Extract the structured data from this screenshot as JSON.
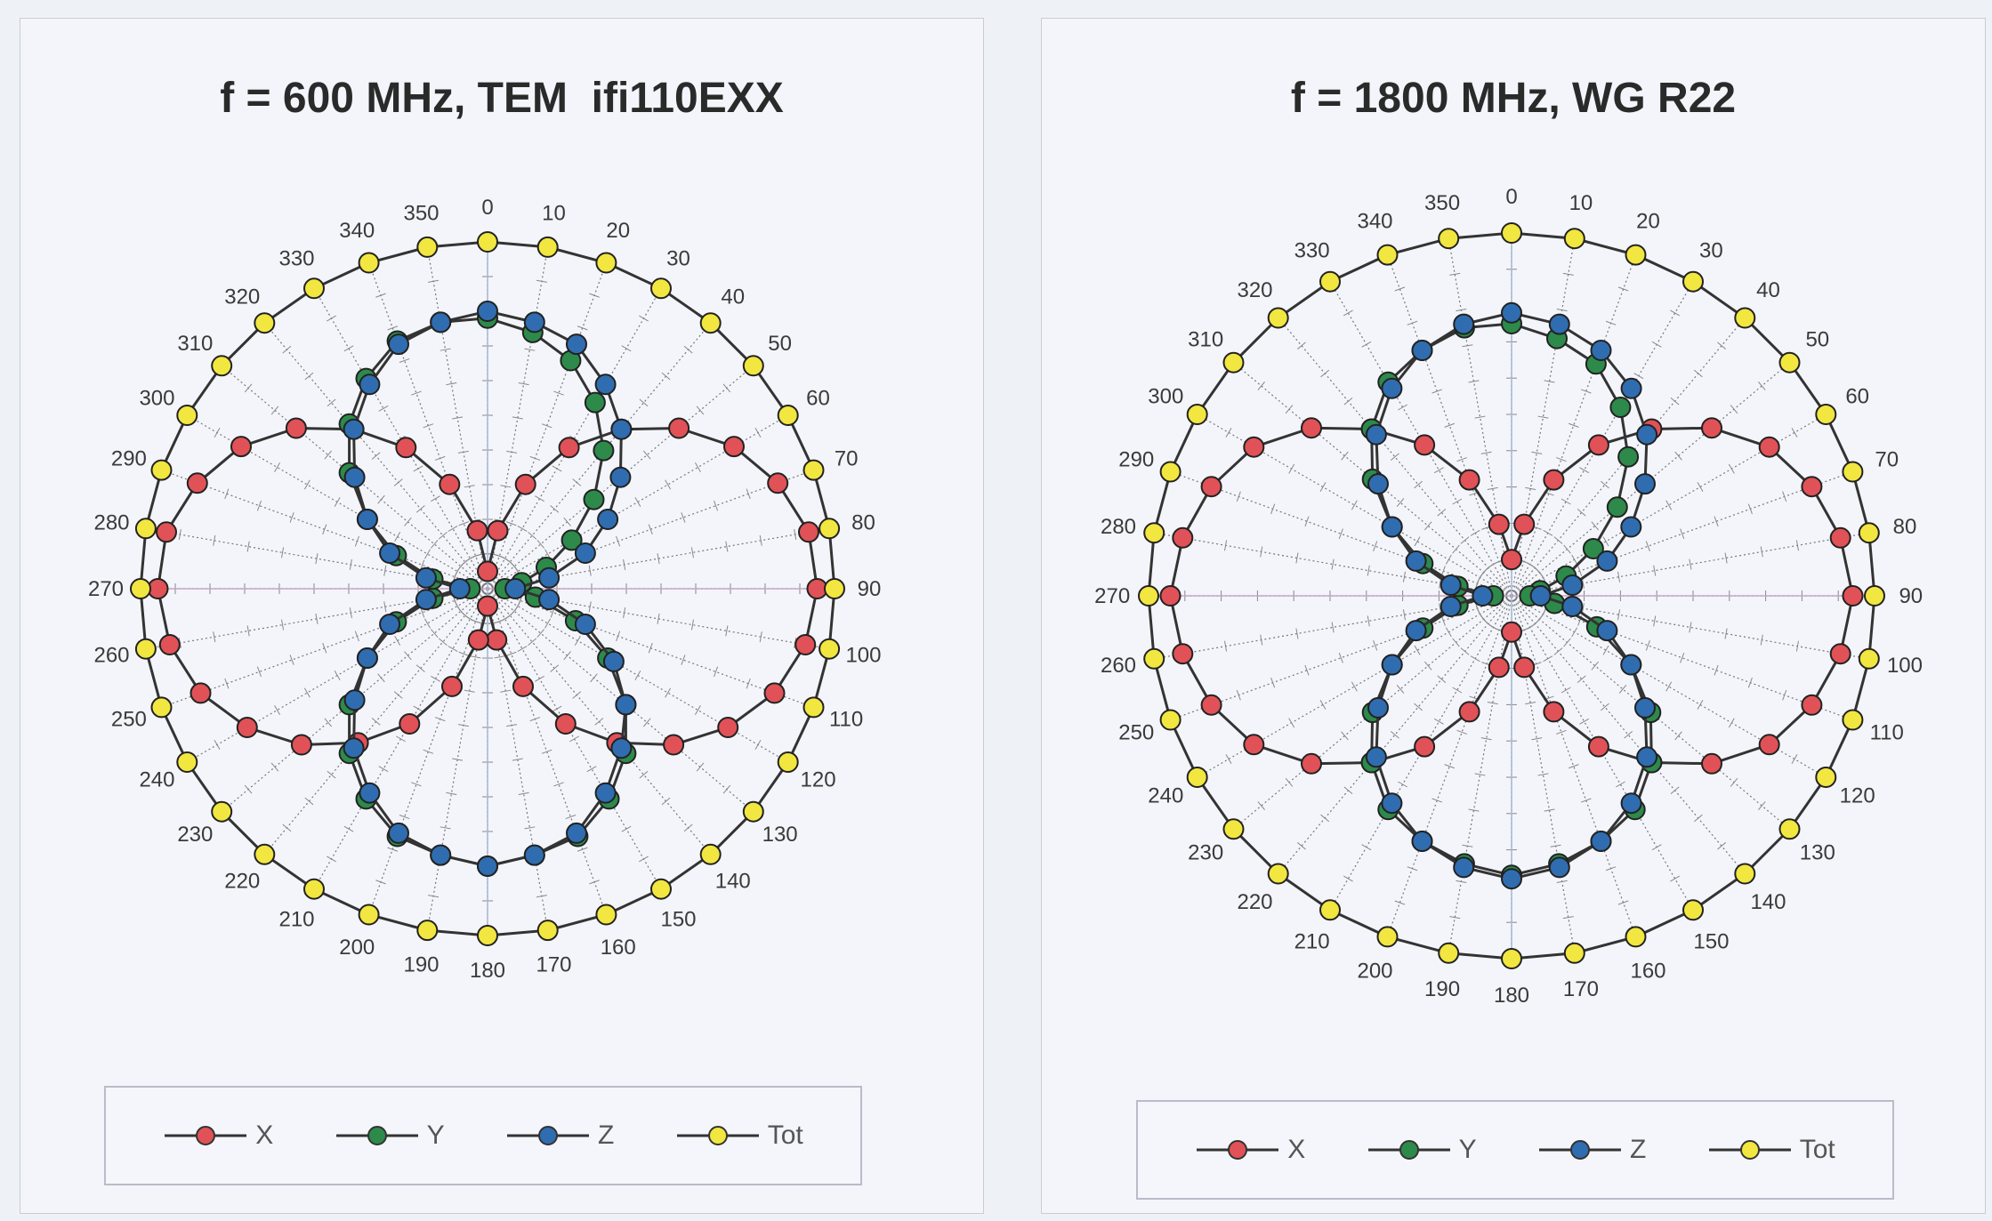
{
  "colors": {
    "X": "#e05257",
    "Y": "#2d8a4a",
    "Z": "#2f6db0",
    "Tot": "#f2e640",
    "line": "#333333",
    "grid": "#777777"
  },
  "chart_data": [
    {
      "type": "polar",
      "title": "f = 600 MHz, TEM  ifi110EXX",
      "angles": [
        0,
        10,
        20,
        30,
        40,
        50,
        60,
        70,
        80,
        90,
        100,
        110,
        120,
        130,
        140,
        150,
        160,
        170,
        180,
        190,
        200,
        210,
        220,
        230,
        240,
        250,
        260,
        270,
        280,
        290,
        300,
        310,
        320,
        330,
        340,
        350
      ],
      "angle_labels": [
        "0",
        "10",
        "20",
        "30",
        "40",
        "50",
        "60",
        "70",
        "80",
        "90",
        "100",
        "110",
        "120",
        "130",
        "140",
        "150",
        "160",
        "170",
        "180",
        "190",
        "200",
        "210",
        "220",
        "230",
        "240",
        "250",
        "260",
        "270",
        "280",
        "290",
        "300",
        "310",
        "320",
        "330",
        "340",
        "350"
      ],
      "rlim": [
        0,
        1
      ],
      "grid": true,
      "legend_position": "bottom",
      "series": [
        {
          "name": "X",
          "values": [
            0.05,
            0.17,
            0.32,
            0.47,
            0.6,
            0.72,
            0.82,
            0.89,
            0.94,
            0.95,
            0.93,
            0.88,
            0.8,
            0.7,
            0.58,
            0.45,
            0.3,
            0.15,
            0.05,
            0.15,
            0.3,
            0.45,
            0.58,
            0.7,
            0.8,
            0.88,
            0.93,
            0.95,
            0.94,
            0.89,
            0.82,
            0.72,
            0.6,
            0.47,
            0.32,
            0.17
          ]
        },
        {
          "name": "Y",
          "values": [
            0.78,
            0.75,
            0.7,
            0.62,
            0.52,
            0.4,
            0.28,
            0.18,
            0.1,
            0.05,
            0.14,
            0.27,
            0.4,
            0.52,
            0.62,
            0.7,
            0.76,
            0.78,
            0.8,
            0.78,
            0.76,
            0.7,
            0.62,
            0.52,
            0.4,
            0.28,
            0.16,
            0.05,
            0.16,
            0.28,
            0.4,
            0.52,
            0.62,
            0.7,
            0.76,
            0.78
          ]
        },
        {
          "name": "Z",
          "values": [
            0.8,
            0.78,
            0.75,
            0.68,
            0.6,
            0.5,
            0.4,
            0.3,
            0.18,
            0.08,
            0.18,
            0.3,
            0.42,
            0.52,
            0.6,
            0.68,
            0.75,
            0.78,
            0.8,
            0.78,
            0.75,
            0.68,
            0.6,
            0.5,
            0.4,
            0.3,
            0.18,
            0.08,
            0.18,
            0.3,
            0.4,
            0.5,
            0.6,
            0.68,
            0.75,
            0.78
          ]
        },
        {
          "name": "Tot",
          "values": [
            1,
            1,
            1,
            1,
            1,
            1,
            1,
            1,
            1,
            1,
            1,
            1,
            1,
            1,
            1,
            1,
            1,
            1,
            1,
            1,
            1,
            1,
            1,
            1,
            1,
            1,
            1,
            1,
            1,
            1,
            1,
            1,
            1,
            1,
            1,
            1
          ]
        }
      ]
    },
    {
      "type": "polar",
      "title": "f = 1800 MHz, WG R22",
      "angles": [
        0,
        10,
        20,
        30,
        40,
        50,
        60,
        70,
        80,
        90,
        100,
        110,
        120,
        130,
        140,
        150,
        160,
        170,
        180,
        190,
        200,
        210,
        220,
        230,
        240,
        250,
        260,
        270,
        280,
        290,
        300,
        310,
        320,
        330,
        340,
        350
      ],
      "angle_labels": [
        "0",
        "10",
        "20",
        "30",
        "40",
        "50",
        "60",
        "70",
        "80",
        "90",
        "100",
        "110",
        "120",
        "130",
        "140",
        "150",
        "160",
        "170",
        "180",
        "190",
        "200",
        "210",
        "220",
        "230",
        "240",
        "250",
        "260",
        "270",
        "280",
        "290",
        "300",
        "310",
        "320",
        "330",
        "340",
        "350"
      ],
      "rlim": [
        0,
        1
      ],
      "grid": true,
      "legend_position": "bottom",
      "series": [
        {
          "name": "X",
          "values": [
            0.1,
            0.2,
            0.34,
            0.48,
            0.6,
            0.72,
            0.82,
            0.88,
            0.92,
            0.94,
            0.92,
            0.88,
            0.82,
            0.72,
            0.6,
            0.48,
            0.34,
            0.2,
            0.1,
            0.2,
            0.34,
            0.48,
            0.6,
            0.72,
            0.82,
            0.88,
            0.92,
            0.94,
            0.92,
            0.88,
            0.82,
            0.72,
            0.6,
            0.48,
            0.34,
            0.2
          ]
        },
        {
          "name": "Y",
          "values": [
            0.75,
            0.72,
            0.68,
            0.6,
            0.5,
            0.38,
            0.26,
            0.16,
            0.08,
            0.05,
            0.12,
            0.25,
            0.38,
            0.5,
            0.6,
            0.68,
            0.72,
            0.75,
            0.77,
            0.75,
            0.72,
            0.68,
            0.6,
            0.5,
            0.38,
            0.26,
            0.15,
            0.05,
            0.15,
            0.26,
            0.38,
            0.5,
            0.6,
            0.68,
            0.72,
            0.75
          ]
        },
        {
          "name": "Z",
          "values": [
            0.78,
            0.76,
            0.72,
            0.66,
            0.58,
            0.48,
            0.38,
            0.28,
            0.17,
            0.08,
            0.17,
            0.28,
            0.38,
            0.48,
            0.58,
            0.66,
            0.72,
            0.76,
            0.78,
            0.76,
            0.72,
            0.66,
            0.58,
            0.48,
            0.38,
            0.28,
            0.17,
            0.08,
            0.17,
            0.28,
            0.38,
            0.48,
            0.58,
            0.66,
            0.72,
            0.76
          ]
        },
        {
          "name": "Tot",
          "values": [
            1,
            1,
            1,
            1,
            1,
            1,
            1,
            1,
            1,
            1,
            1,
            1,
            1,
            1,
            1,
            1,
            1,
            1,
            1,
            1,
            1,
            1,
            1,
            1,
            1,
            1,
            1,
            1,
            1,
            1,
            1,
            1,
            1,
            1,
            1,
            1
          ]
        }
      ]
    }
  ]
}
